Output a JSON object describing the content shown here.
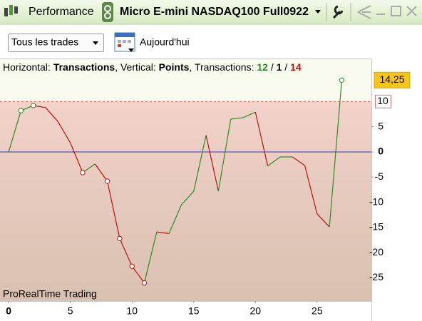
{
  "toolbar": {
    "app_label": "Performance",
    "instrument": "Micro E-mini NASDAQ100 Full0922"
  },
  "filter": {
    "dropdown": "Tous les trades",
    "period": "Aujourd'hui"
  },
  "chart_data": {
    "type": "line",
    "header": [
      "Horizontal: ",
      "Transactions",
      ", Vertical: ",
      "Points",
      ", Transactions: ",
      "12",
      " / ",
      "1",
      " / ",
      "14"
    ],
    "watermark": "ProRealTime Trading",
    "x": [
      0,
      1,
      2,
      3,
      4,
      5,
      6,
      7,
      8,
      9,
      10,
      11,
      12,
      13,
      14,
      15,
      16,
      17,
      18,
      19,
      20,
      21,
      22,
      23,
      24,
      25,
      26,
      27
    ],
    "values": [
      0,
      8.2,
      9.2,
      8.8,
      6.0,
      1.8,
      -4.1,
      -2.4,
      -5.8,
      -17.2,
      -22.7,
      -26.0,
      -15.9,
      -16.2,
      -10.5,
      -7.8,
      3.3,
      -7.8,
      6.5,
      6.8,
      7.9,
      -2.8,
      -1.0,
      -1.0,
      -2.7,
      -12.3,
      -14.9,
      14.25
    ],
    "value_labels": [
      null,
      null,
      null,
      null,
      null,
      null,
      null,
      null,
      null,
      null,
      null,
      null,
      null,
      null,
      null,
      null,
      null,
      null,
      null,
      null,
      null,
      null,
      null,
      null,
      null,
      null,
      null,
      "14,25"
    ],
    "up_color": "#2e8b22",
    "down_color": "#c01010",
    "zero_line_color": "#3030c0",
    "threshold": 10,
    "xlim": [
      -0.7,
      29.4
    ],
    "xticks": [
      0,
      5,
      10,
      15,
      20,
      25
    ],
    "ylim": [
      -29.6,
      18.4
    ],
    "yticks": [
      5,
      0,
      -5,
      -10,
      -15,
      -20,
      -25
    ],
    "grid": false
  }
}
